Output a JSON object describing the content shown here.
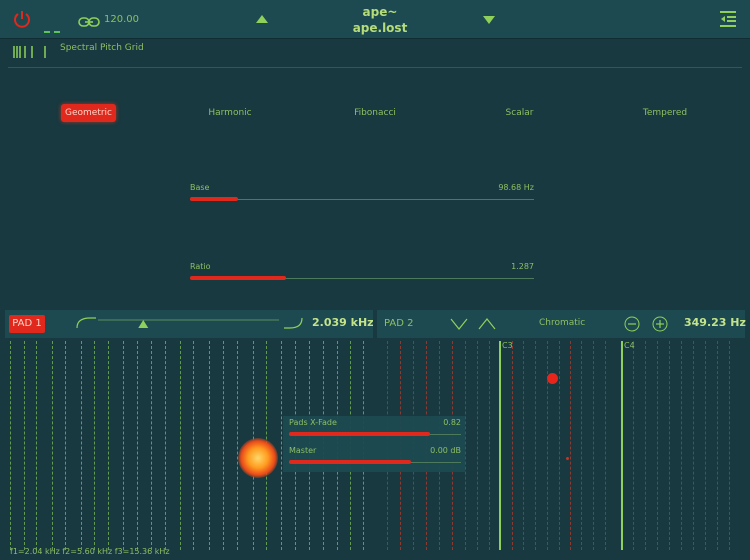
{
  "header": {
    "tempo": "120.00",
    "app_title": "ape~",
    "preset_name": "ape.lost",
    "icons": {
      "power": "power-icon",
      "link": "link-icon",
      "prev": "arrow-up-icon",
      "next": "arrow-down-icon",
      "menu": "menu-icon"
    }
  },
  "module": {
    "title": "Spectral Pitch Grid"
  },
  "tabs": [
    {
      "label": "Geometric",
      "active": true
    },
    {
      "label": "Harmonic",
      "active": false
    },
    {
      "label": "Fibonacci",
      "active": false
    },
    {
      "label": "Scalar",
      "active": false
    },
    {
      "label": "Tempered",
      "active": false
    }
  ],
  "sliders": {
    "base": {
      "label": "Base",
      "value": "98.68 Hz",
      "level": 0.14
    },
    "ratio": {
      "label": "Ratio",
      "value": "1.287",
      "level": 0.28
    }
  },
  "pad1": {
    "label": "PAD 1",
    "frequency": "2.039 kHz",
    "slider_level": 0.25
  },
  "pad2": {
    "label": "PAD 2",
    "mode": "Chromatic",
    "frequency": "349.23 Hz"
  },
  "grid": {
    "markers": [
      "C3",
      "C4"
    ]
  },
  "mixer": {
    "xfade": {
      "label": "Pads X-Fade",
      "value": "0.82",
      "level": 0.82
    },
    "master": {
      "label": "Master",
      "value": "0.00 dB",
      "level": 0.71
    }
  },
  "footer": {
    "formants": "f1=2.04 kHz f2=5.60 kHz f3=15.36 kHz"
  },
  "colors": {
    "accent": "#e0281c",
    "text": "#8fbf63",
    "background": "#17393f"
  }
}
